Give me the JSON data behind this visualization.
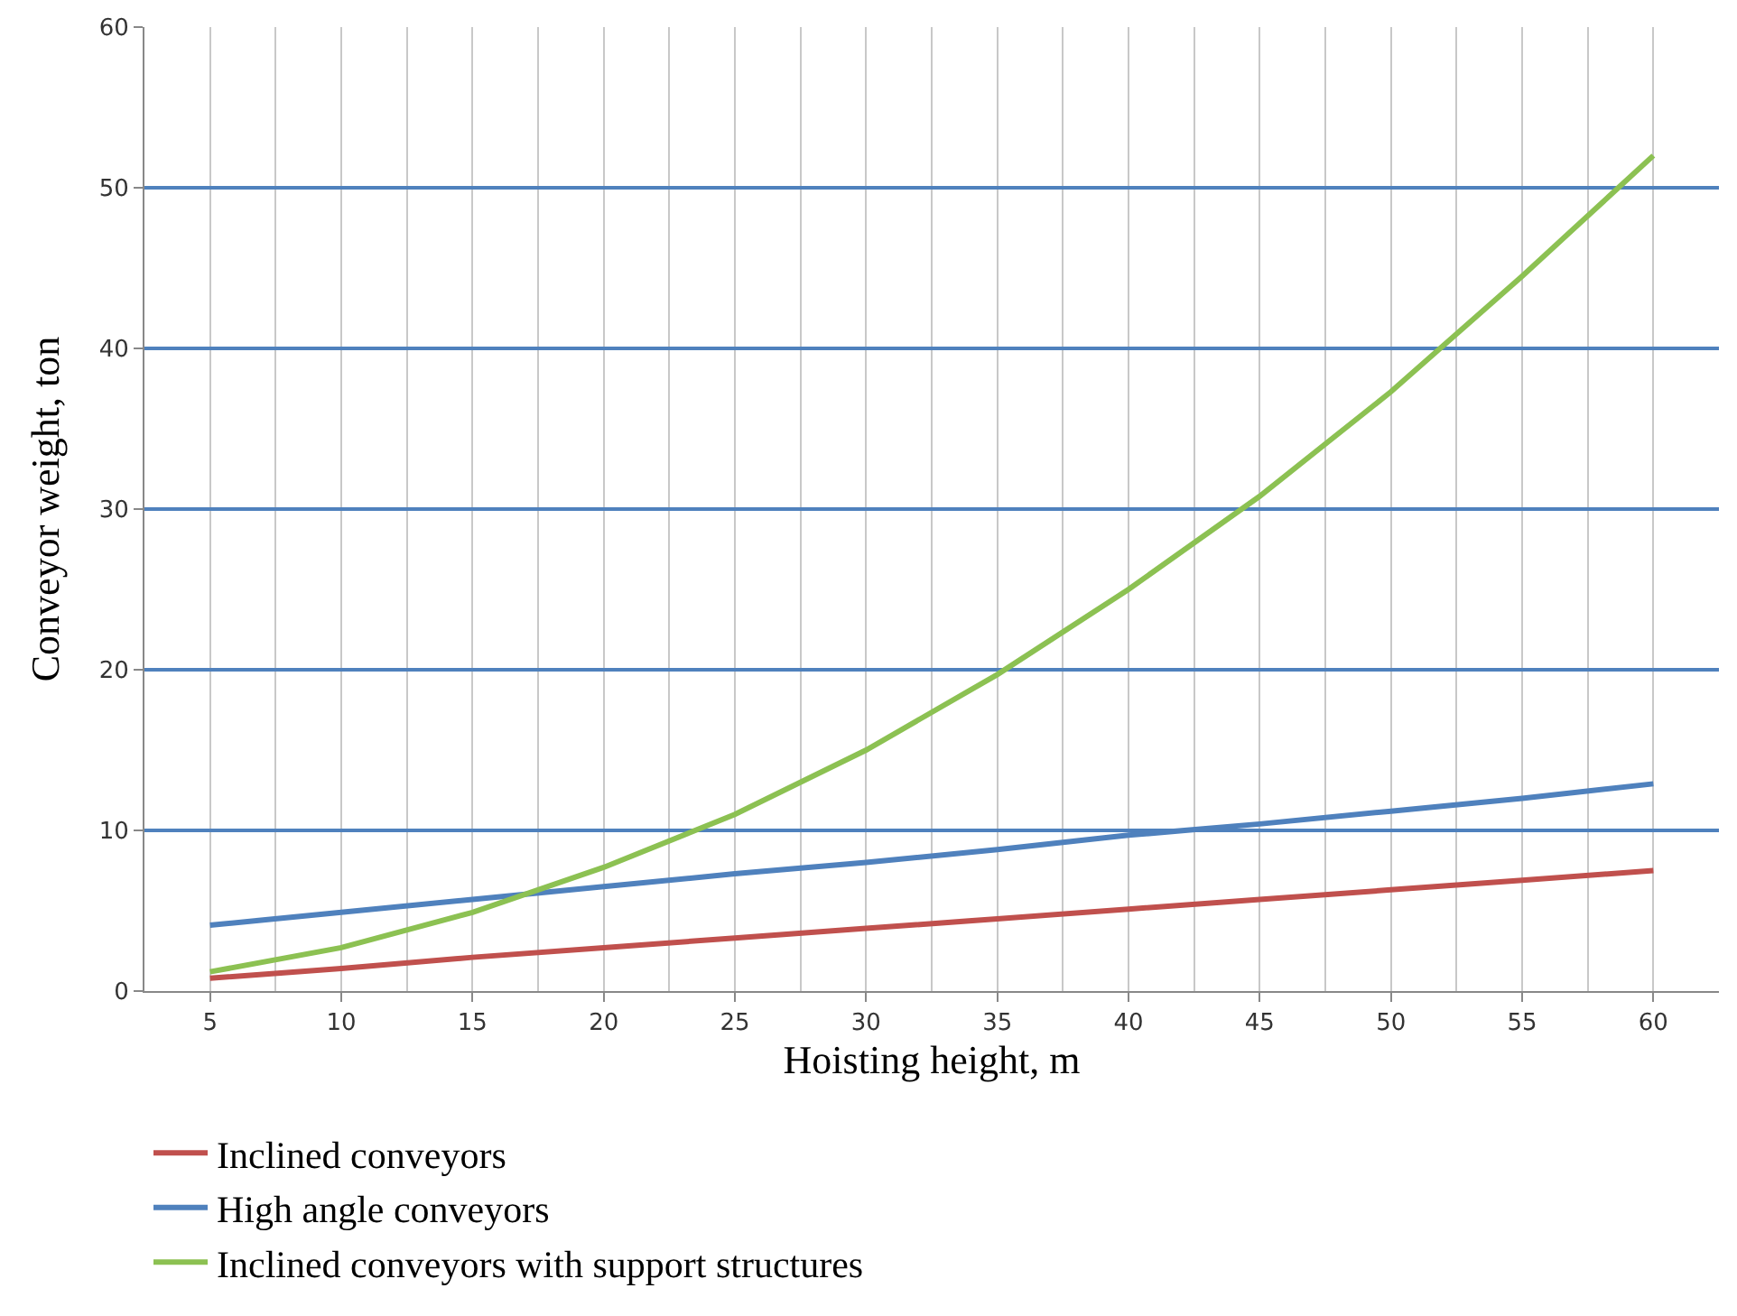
{
  "chart_data": {
    "type": "line",
    "xlabel": "Hoisting height, m",
    "ylabel": "Conveyor weight, ton",
    "x": [
      5,
      10,
      15,
      20,
      25,
      30,
      35,
      40,
      45,
      50,
      55,
      60
    ],
    "xlim": [
      2.5,
      62.5
    ],
    "xticks": [
      5,
      10,
      15,
      20,
      25,
      30,
      35,
      40,
      45,
      50,
      55,
      60
    ],
    "ylim": [
      0,
      60
    ],
    "yticks": [
      0,
      10,
      20,
      30,
      40,
      50,
      60
    ],
    "grid": true,
    "legend": "bottom",
    "marker": "none",
    "line_style": "solid",
    "series": [
      {
        "name": "Inclined conveyors",
        "color": "#c0504d",
        "values": [
          0.8,
          1.4,
          2.1,
          2.7,
          3.3,
          3.9,
          4.5,
          5.1,
          5.7,
          6.3,
          6.9,
          7.5
        ]
      },
      {
        "name": "High angle conveyors",
        "color": "#4f81bd",
        "values": [
          4.1,
          4.9,
          5.7,
          6.5,
          7.3,
          8.0,
          8.8,
          9.7,
          10.4,
          11.2,
          12.0,
          12.9
        ]
      },
      {
        "name": "Inclined conveyors with support structures",
        "color": "#8cc152",
        "values": [
          1.2,
          2.7,
          4.9,
          7.7,
          11.0,
          15.0,
          19.7,
          25.0,
          30.8,
          37.3,
          44.5,
          52.0
        ]
      }
    ]
  }
}
